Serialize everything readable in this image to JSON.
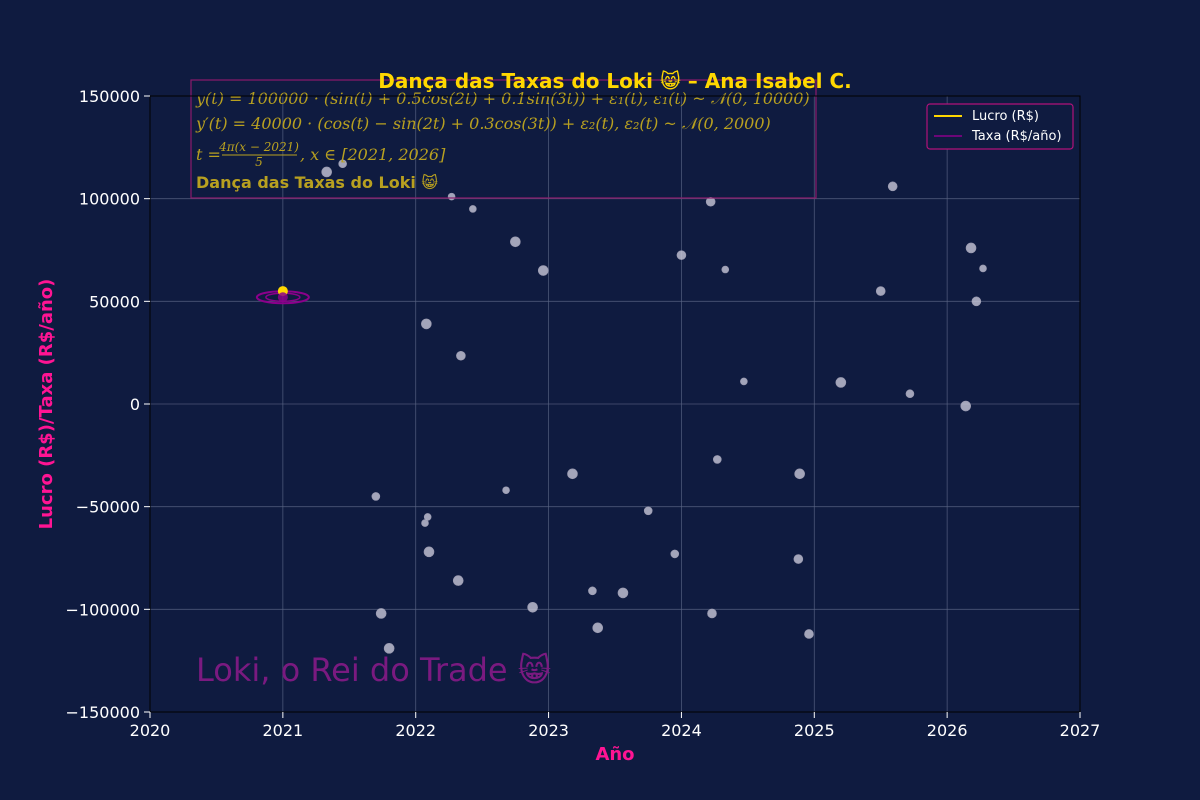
{
  "chart_data": {
    "type": "scatter",
    "title": "Dança das Taxas do Loki 😸 – Ana Isabel C.",
    "xlabel": "Año",
    "ylabel": "Lucro (R$)/Taxa (R$/año)",
    "xlim": [
      2020,
      2027
    ],
    "ylim": [
      -150000,
      150000
    ],
    "xticks": [
      2020,
      2021,
      2022,
      2023,
      2024,
      2025,
      2026,
      2027
    ],
    "yticks": [
      -150000,
      -100000,
      -50000,
      0,
      50000,
      100000,
      150000
    ],
    "grid": true,
    "legend_position": "top-right",
    "series": [
      {
        "name": "Lucro (R$)",
        "kind": "line",
        "color": "#ffd700",
        "x": [
          2021.0
        ],
        "y": [
          55000
        ]
      },
      {
        "name": "Taxa (R$/año)",
        "kind": "line",
        "color": "#8b008b",
        "x": [
          2021.0
        ],
        "y": [
          52000
        ]
      }
    ],
    "scatter_points": [
      {
        "x": 2021.33,
        "y": 113000,
        "s": 5
      },
      {
        "x": 2021.45,
        "y": 117000,
        "s": 4
      },
      {
        "x": 2021.7,
        "y": -45000,
        "s": 4
      },
      {
        "x": 2021.74,
        "y": -102000,
        "s": 5
      },
      {
        "x": 2021.8,
        "y": -119000,
        "s": 5
      },
      {
        "x": 2022.07,
        "y": -58000,
        "s": 3.5
      },
      {
        "x": 2022.08,
        "y": 39000,
        "s": 5
      },
      {
        "x": 2022.09,
        "y": -55000,
        "s": 3.5
      },
      {
        "x": 2022.1,
        "y": -72000,
        "s": 5
      },
      {
        "x": 2022.27,
        "y": 101000,
        "s": 3.5
      },
      {
        "x": 2022.32,
        "y": -86000,
        "s": 5
      },
      {
        "x": 2022.34,
        "y": 23500,
        "s": 4.5
      },
      {
        "x": 2022.43,
        "y": 95000,
        "s": 3.5
      },
      {
        "x": 2022.68,
        "y": -42000,
        "s": 3.5
      },
      {
        "x": 2022.75,
        "y": 79000,
        "s": 5
      },
      {
        "x": 2022.88,
        "y": -99000,
        "s": 5
      },
      {
        "x": 2022.96,
        "y": 65000,
        "s": 5
      },
      {
        "x": 2023.18,
        "y": -34000,
        "s": 5
      },
      {
        "x": 2023.33,
        "y": -91000,
        "s": 4
      },
      {
        "x": 2023.37,
        "y": -109000,
        "s": 5
      },
      {
        "x": 2023.56,
        "y": -92000,
        "s": 5
      },
      {
        "x": 2023.75,
        "y": -52000,
        "s": 4
      },
      {
        "x": 2023.95,
        "y": -73000,
        "s": 4
      },
      {
        "x": 2024.0,
        "y": 72500,
        "s": 4.5
      },
      {
        "x": 2024.22,
        "y": 98500,
        "s": 4.5
      },
      {
        "x": 2024.23,
        "y": -102000,
        "s": 4.5
      },
      {
        "x": 2024.27,
        "y": -27000,
        "s": 4
      },
      {
        "x": 2024.33,
        "y": 65500,
        "s": 3.5
      },
      {
        "x": 2024.47,
        "y": 11000,
        "s": 3.5
      },
      {
        "x": 2024.88,
        "y": -75500,
        "s": 4.5
      },
      {
        "x": 2024.89,
        "y": -34000,
        "s": 5
      },
      {
        "x": 2024.96,
        "y": -112000,
        "s": 4.5
      },
      {
        "x": 2025.2,
        "y": 10500,
        "s": 5
      },
      {
        "x": 2025.5,
        "y": 55000,
        "s": 4.5
      },
      {
        "x": 2025.59,
        "y": 106000,
        "s": 4.5
      },
      {
        "x": 2025.72,
        "y": 5000,
        "s": 4
      },
      {
        "x": 2026.14,
        "y": -1000,
        "s": 5
      },
      {
        "x": 2026.18,
        "y": 76000,
        "s": 5
      },
      {
        "x": 2026.22,
        "y": 50000,
        "s": 4.5
      },
      {
        "x": 2026.27,
        "y": 66000,
        "s": 3.5
      }
    ]
  },
  "annotation": {
    "line1": "y(t) = 100000 · (sin(t) + 0.5cos(2t) + 0.1sin(3t)) + ε₁(t), ε₁(t) ~ 𝒩(0, 10000)",
    "line2": "y′(t) = 40000 · (cos(t) − sin(2t) + 0.3cos(3t)) + ε₂(t), ε₂(t) ~ 𝒩(0, 2000)",
    "line3_prefix": "t = ",
    "line3_num": "4π(x − 2021)",
    "line3_den": "5",
    "line3_suffix": ", x ∈ [2021, 2026]",
    "line4": "Dança das Taxas do Loki 😸"
  },
  "watermark": "Loki, o Rei do Trade 😸",
  "colors": {
    "background": "#0f1b40",
    "title": "#ffd700",
    "axis_label": "#ff1493",
    "annotation_text": "#b8a020",
    "annotation_border": "#8b1a6b",
    "watermark": "#7a1a80",
    "scatter": "#c8c8d8",
    "grid": "#5a6585"
  }
}
